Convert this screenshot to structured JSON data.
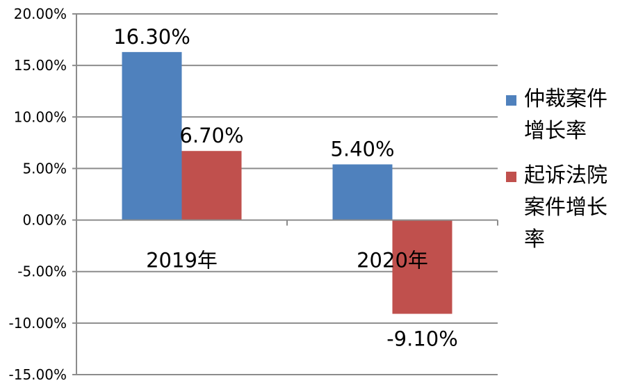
{
  "chart_data": {
    "type": "bar",
    "categories": [
      "2019年",
      "2020年"
    ],
    "series": [
      {
        "name": "仲裁案件增长率",
        "values": [
          16.3,
          5.4
        ],
        "labels": [
          "16.30%",
          "5.40%"
        ],
        "color": "#4F81BD"
      },
      {
        "name": "起诉法院案件增长率",
        "values": [
          6.7,
          -9.1
        ],
        "labels": [
          "6.70%",
          "-9.10%"
        ],
        "color": "#C0504D"
      }
    ],
    "ylim": [
      -15,
      20
    ],
    "yticks": [
      20,
      15,
      10,
      5,
      0,
      -5,
      -10,
      -15
    ],
    "ytick_labels": [
      "20.00%",
      "15.00%",
      "10.00%",
      "5.00%",
      "0.00%",
      "-5.00%",
      "-10.00%",
      "-15.00%"
    ],
    "grid": true,
    "legend_position": "right"
  }
}
